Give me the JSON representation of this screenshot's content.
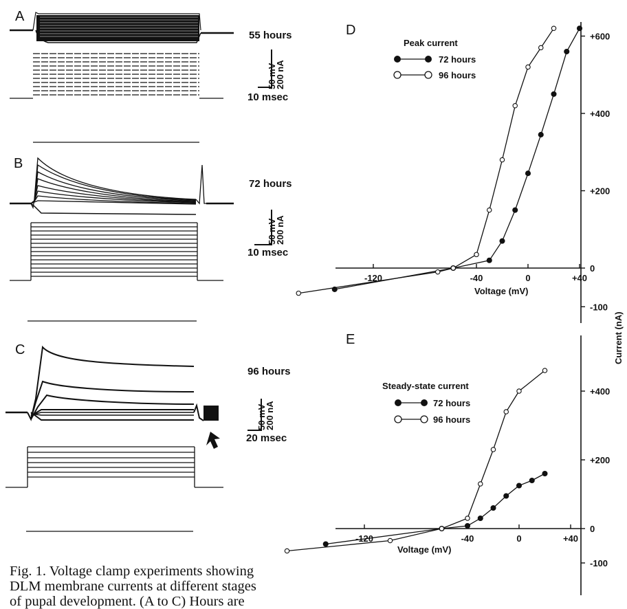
{
  "panels": {
    "A": {
      "letter": "A",
      "time_label": "55 hours",
      "scale_volt": "50 mV",
      "scale_curr": "200 nA",
      "scale_time": "10 msec"
    },
    "B": {
      "letter": "B",
      "time_label": "72 hours",
      "scale_volt": "50 mV",
      "scale_curr": "200 nA",
      "scale_time": "10 msec"
    },
    "C": {
      "letter": "C",
      "time_label": "96 hours",
      "scale_volt": "50 mV",
      "scale_curr": "200 nA",
      "scale_time": "20 msec"
    },
    "D": {
      "letter": "D"
    },
    "E": {
      "letter": "E"
    }
  },
  "shared_ylabel": "Current (nA)",
  "caption_lines": [
    "Fig. 1. Voltage clamp experiments showing",
    "DLM membrane currents at different stages",
    "of pupal development. (A to C) Hours are"
  ],
  "chart_data": [
    {
      "panel": "D",
      "type": "line",
      "title": "Peak current",
      "xlabel": "Voltage (mV)",
      "ylabel": "Current (nA)",
      "xlim": [
        -180,
        50
      ],
      "ylim": [
        -100,
        620
      ],
      "xticks": [
        "-120",
        "-40",
        "0",
        "+40"
      ],
      "xtick_values": [
        -120,
        -40,
        0,
        40
      ],
      "yticks": [
        "+600",
        "+400",
        "+200",
        "0",
        "-100"
      ],
      "ytick_values": [
        600,
        400,
        200,
        0,
        -100
      ],
      "legend_position": "top-left",
      "series": [
        {
          "name": "72 hours",
          "marker": "filled",
          "x": [
            -150,
            -58,
            -30,
            -20,
            -10,
            0,
            10,
            20,
            30,
            40
          ],
          "y": [
            -55,
            0,
            20,
            70,
            150,
            245,
            345,
            450,
            560,
            620
          ]
        },
        {
          "name": "96 hours",
          "marker": "open",
          "x": [
            -178,
            -70,
            -58,
            -40,
            -30,
            -20,
            -10,
            0,
            10,
            20
          ],
          "y": [
            -65,
            -10,
            0,
            35,
            150,
            280,
            420,
            520,
            570,
            620
          ]
        }
      ]
    },
    {
      "panel": "E",
      "type": "line",
      "title": "Steady-state current",
      "xlabel": "Voltage (mV)",
      "ylabel": "Current (nA)",
      "xlim": [
        -180,
        50
      ],
      "ylim": [
        -100,
        560
      ],
      "xticks": [
        "-120",
        "-40",
        "0",
        "+40"
      ],
      "xtick_values": [
        -120,
        -40,
        0,
        40
      ],
      "yticks": [
        "+400",
        "+200",
        "0",
        "-100"
      ],
      "ytick_values": [
        400,
        200,
        0,
        -100
      ],
      "legend_position": "top-left",
      "series": [
        {
          "name": "72 hours",
          "marker": "filled",
          "x": [
            -150,
            -60,
            -40,
            -30,
            -20,
            -10,
            0,
            10,
            20
          ],
          "y": [
            -45,
            0,
            8,
            30,
            60,
            95,
            125,
            140,
            160
          ]
        },
        {
          "name": "96 hours",
          "marker": "open",
          "x": [
            -180,
            -100,
            -60,
            -40,
            -30,
            -20,
            -10,
            0,
            20
          ],
          "y": [
            -65,
            -35,
            0,
            30,
            130,
            230,
            340,
            400,
            460
          ]
        }
      ]
    }
  ]
}
